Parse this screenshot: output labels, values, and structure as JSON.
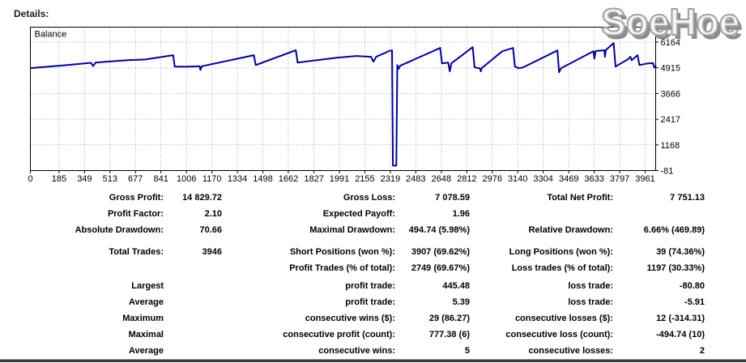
{
  "page": {
    "heading": "Details:"
  },
  "watermark": {
    "text": "SoeHoe"
  },
  "chart_data": {
    "type": "line",
    "title": "Balance",
    "xlabel": "",
    "ylabel": "",
    "grid": true,
    "legend_position": "top-left-inside",
    "line_color": "#0000A8",
    "grid_color": "#c8c8c8",
    "axis_color": "#000000",
    "x_ticks": [
      0,
      185,
      349,
      513,
      677,
      841,
      1006,
      1170,
      1334,
      1498,
      1662,
      1827,
      1991,
      2155,
      2319,
      2483,
      2648,
      2812,
      2976,
      3140,
      3304,
      3469,
      3633,
      3797,
      3961
    ],
    "y_ticks": [
      -81,
      1168,
      2417,
      3666,
      4915,
      6164
    ],
    "xlim": [
      0,
      4040
    ],
    "ylim": [
      -81,
      6915
    ],
    "series": [
      {
        "name": "Balance",
        "points": [
          [
            0,
            4900
          ],
          [
            60,
            4940
          ],
          [
            240,
            5050
          ],
          [
            390,
            5160
          ],
          [
            405,
            5000
          ],
          [
            420,
            5170
          ],
          [
            630,
            5290
          ],
          [
            700,
            5310
          ],
          [
            740,
            5320
          ],
          [
            920,
            5530
          ],
          [
            930,
            4970
          ],
          [
            1020,
            4975
          ],
          [
            1090,
            4990
          ],
          [
            1096,
            4810
          ],
          [
            1104,
            4990
          ],
          [
            1440,
            5530
          ],
          [
            1452,
            5050
          ],
          [
            1710,
            5770
          ],
          [
            1722,
            5170
          ],
          [
            1980,
            5410
          ],
          [
            2100,
            5490
          ],
          [
            2195,
            5450
          ],
          [
            2210,
            5210
          ],
          [
            2228,
            5450
          ],
          [
            2320,
            5760
          ],
          [
            2330,
            5760
          ],
          [
            2336,
            160
          ],
          [
            2358,
            160
          ],
          [
            2364,
            5050
          ],
          [
            2372,
            4860
          ],
          [
            2382,
            5015
          ],
          [
            2640,
            5880
          ],
          [
            2652,
            5130
          ],
          [
            2692,
            5170
          ],
          [
            2702,
            4740
          ],
          [
            2712,
            5130
          ],
          [
            2850,
            5920
          ],
          [
            2862,
            4940
          ],
          [
            2896,
            4890
          ],
          [
            2902,
            4740
          ],
          [
            2908,
            4900
          ],
          [
            3040,
            5720
          ],
          [
            3110,
            5880
          ],
          [
            3122,
            4980
          ],
          [
            3148,
            4890
          ],
          [
            3175,
            4940
          ],
          [
            3396,
            5760
          ],
          [
            3406,
            4700
          ],
          [
            3420,
            4900
          ],
          [
            3628,
            5720
          ],
          [
            3634,
            5370
          ],
          [
            3642,
            5730
          ],
          [
            3698,
            5770
          ],
          [
            3702,
            5450
          ],
          [
            3708,
            5780
          ],
          [
            3758,
            6120
          ],
          [
            3770,
            4980
          ],
          [
            3850,
            5330
          ],
          [
            3866,
            5450
          ],
          [
            3874,
            5280
          ],
          [
            3912,
            5530
          ],
          [
            3924,
            5050
          ],
          [
            3980,
            5130
          ],
          [
            4012,
            5140
          ],
          [
            4020,
            4930
          ],
          [
            4032,
            5020
          ]
        ]
      }
    ]
  },
  "report": {
    "rows": [
      {
        "cells": [
          "Gross Profit:",
          "14 829.72",
          "Gross Loss:",
          "7 078.59",
          "Total Net Profit:",
          "7 751.13"
        ],
        "gap": ""
      },
      {
        "cells": [
          "Profit Factor:",
          "2.10",
          "Expected Payoff:",
          "1.96",
          "",
          ""
        ],
        "gap": ""
      },
      {
        "cells": [
          "Absolute Drawdown:",
          "70.66",
          "Maximal Drawdown:",
          "494.74 (5.98%)",
          "Relative Drawdown:",
          "6.66% (469.89)"
        ],
        "gap": ""
      },
      {
        "cells": [
          "Total Trades:",
          "3946",
          "Short Positions (won %):",
          "3907 (69.62%)",
          "Long Positions (won %):",
          "39 (74.36%)"
        ],
        "gap": "gap7"
      },
      {
        "cells": [
          "",
          "",
          "Profit Trades (% of total):",
          "2749 (69.67%)",
          "Loss trades (% of total):",
          "1197 (30.33%)"
        ],
        "gap": ""
      },
      {
        "cells": [
          "Largest",
          "",
          "profit trade:",
          "445.48",
          "loss trade:",
          "-80.80"
        ],
        "gap": "gap2"
      },
      {
        "cells": [
          "Average",
          "",
          "profit trade:",
          "5.39",
          "loss trade:",
          "-5.91"
        ],
        "gap": ""
      },
      {
        "cells": [
          "Maximum",
          "",
          "consecutive wins ($):",
          "29 (86.27)",
          "consecutive losses ($):",
          "12 (-314.31)"
        ],
        "gap": ""
      },
      {
        "cells": [
          "Maximal",
          "",
          "consecutive profit (count):",
          "777.38 (6)",
          "consecutive loss (count):",
          "-494.74 (10)"
        ],
        "gap": ""
      },
      {
        "cells": [
          "Average",
          "",
          "consecutive wins:",
          "5",
          "consecutive losses:",
          "2"
        ],
        "gap": ""
      }
    ]
  }
}
